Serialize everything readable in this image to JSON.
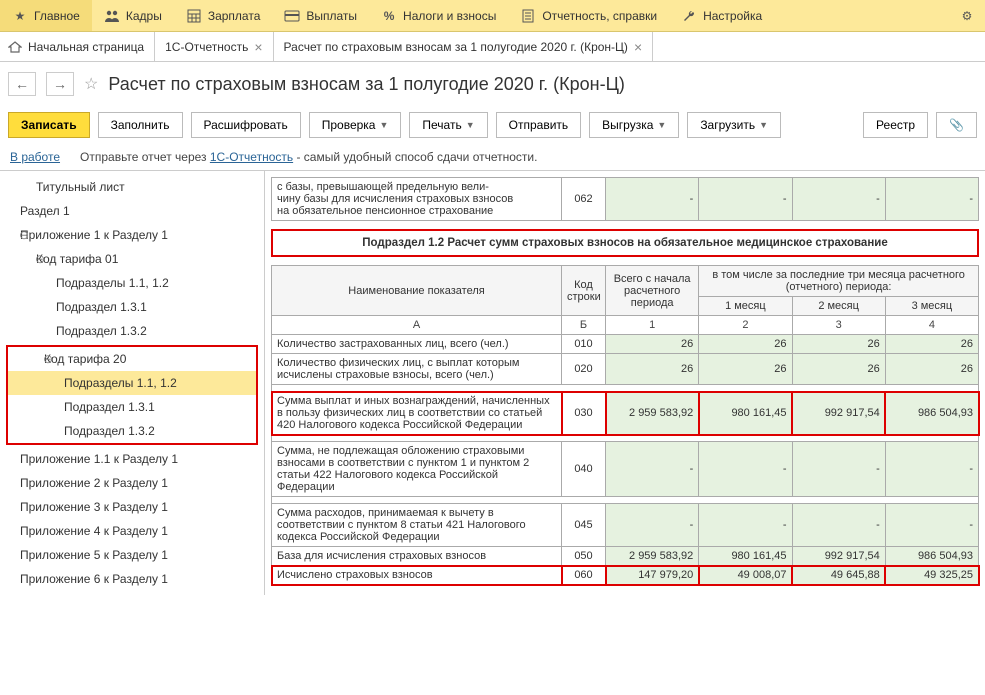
{
  "topbar": {
    "items": [
      {
        "label": "Главное"
      },
      {
        "label": "Кадры"
      },
      {
        "label": "Зарплата"
      },
      {
        "label": "Выплаты"
      },
      {
        "label": "Налоги и взносы"
      },
      {
        "label": "Отчетность, справки"
      },
      {
        "label": "Настройка"
      }
    ]
  },
  "tabs": {
    "home": "Начальная страница",
    "items": [
      {
        "label": "1С-Отчетность"
      },
      {
        "label": "Расчет по страховым взносам за 1 полугодие 2020 г. (Крон-Ц)"
      }
    ]
  },
  "page_title": "Расчет по страховым взносам за 1 полугодие 2020 г. (Крон-Ц)",
  "toolbar": {
    "save": "Записать",
    "fill": "Заполнить",
    "explain": "Расшифровать",
    "check": "Проверка",
    "print": "Печать",
    "send": "Отправить",
    "export": "Выгрузка",
    "upload": "Загрузить",
    "registry": "Реестр"
  },
  "infobar": {
    "status": "В работе",
    "prefix": "Отправьте отчет через ",
    "link": "1С-Отчетность",
    "suffix": " - самый удобный способ сдачи отчетности."
  },
  "tree": {
    "items": [
      {
        "label": "Титульный лист",
        "level": 1
      },
      {
        "label": "Раздел 1",
        "level": 0
      },
      {
        "label": "Приложение 1 к Разделу 1",
        "level": 0,
        "toggle": "⊖"
      },
      {
        "label": "Код тарифа 01",
        "level": 1,
        "toggle": "⊖"
      },
      {
        "label": "Подразделы 1.1, 1.2",
        "level": 2
      },
      {
        "label": "Подраздел 1.3.1",
        "level": 2
      },
      {
        "label": "Подраздел 1.3.2",
        "level": 2
      },
      {
        "label": "Код тарифа 20",
        "level": 1,
        "toggle": "⊖",
        "hl_start": true
      },
      {
        "label": "Подразделы 1.1, 1.2",
        "level": 2,
        "selected": true
      },
      {
        "label": "Подраздел 1.3.1",
        "level": 2
      },
      {
        "label": "Подраздел 1.3.2",
        "level": 2,
        "hl_end": true
      },
      {
        "label": "Приложение 1.1 к Разделу 1",
        "level": 0
      },
      {
        "label": "Приложение 2 к Разделу 1",
        "level": 0
      },
      {
        "label": "Приложение 3 к Разделу 1",
        "level": 0
      },
      {
        "label": "Приложение 4 к Разделу 1",
        "level": 0
      },
      {
        "label": "Приложение 5 к Разделу 1",
        "level": 0
      },
      {
        "label": "Приложение 6 к Разделу 1",
        "level": 0
      }
    ]
  },
  "top_table": {
    "row": {
      "name": "с базы, превышающей предельную вели-\nчину базы для исчисления страховых взносов\nна обязательное пенсионное страхование",
      "code": "062",
      "v1": "-",
      "v2": "-",
      "v3": "-",
      "v4": "-"
    }
  },
  "section_title": "Подраздел 1.2 Расчет сумм страховых взносов на обязательное медицинское страхование",
  "header": {
    "name": "Наименование показателя",
    "code": "Код строки",
    "total": "Всего с начала расчетного периода",
    "group": "в том числе за последние три месяца расчетного (отчетного) периода:",
    "m1": "1 месяц",
    "m2": "2 месяц",
    "m3": "3 месяц",
    "sub": {
      "a": "А",
      "b": "Б",
      "c1": "1",
      "c2": "2",
      "c3": "3",
      "c4": "4"
    }
  },
  "rows": [
    {
      "name": "Количество застрахованных лиц, всего (чел.)",
      "code": "010",
      "v1": "26",
      "v2": "26",
      "v3": "26",
      "v4": "26",
      "green": true
    },
    {
      "name": "Количество физических лиц, с выплат которым исчислены страховые взносы, всего (чел.)",
      "code": "020",
      "v1": "26",
      "v2": "26",
      "v3": "26",
      "v4": "26",
      "green": true
    },
    {
      "name": "Сумма выплат и иных вознаграждений, начисленных в пользу физических лиц в соответствии со статьей 420 Налогового кодекса Российской Федерации",
      "code": "030",
      "v1": "2 959 583,92",
      "v2": "980 161,45",
      "v3": "992 917,54",
      "v4": "986 504,93",
      "green": true,
      "highlight": true
    },
    {
      "name": "Сумма, не подлежащая обложению страховыми взносами в соответствии с пунктом 1 и пунктом 2 статьи 422 Налогового кодекса Российской Федерации",
      "code": "040",
      "v1": "-",
      "v2": "-",
      "v3": "-",
      "v4": "-",
      "green": true
    },
    {
      "name": "Сумма расходов, принимаемая к вычету в соответствии с пунктом 8 статьи 421 Налогового кодекса Российской Федерации",
      "code": "045",
      "v1": "-",
      "v2": "-",
      "v3": "-",
      "v4": "-",
      "green": true
    },
    {
      "name": "База для исчисления страховых взносов",
      "code": "050",
      "v1": "2 959 583,92",
      "v2": "980 161,45",
      "v3": "992 917,54",
      "v4": "986 504,93",
      "green": true
    },
    {
      "name": "Исчислено страховых взносов",
      "code": "060",
      "v1": "147 979,20",
      "v2": "49 008,07",
      "v3": "49 645,88",
      "v4": "49 325,25",
      "green": true,
      "highlight": true
    }
  ],
  "colors": {
    "topbar_bg": "#fde99a",
    "primary_btn": "#ffdd3c",
    "highlight": "#d00",
    "green_cell": "#e6f2e0"
  }
}
